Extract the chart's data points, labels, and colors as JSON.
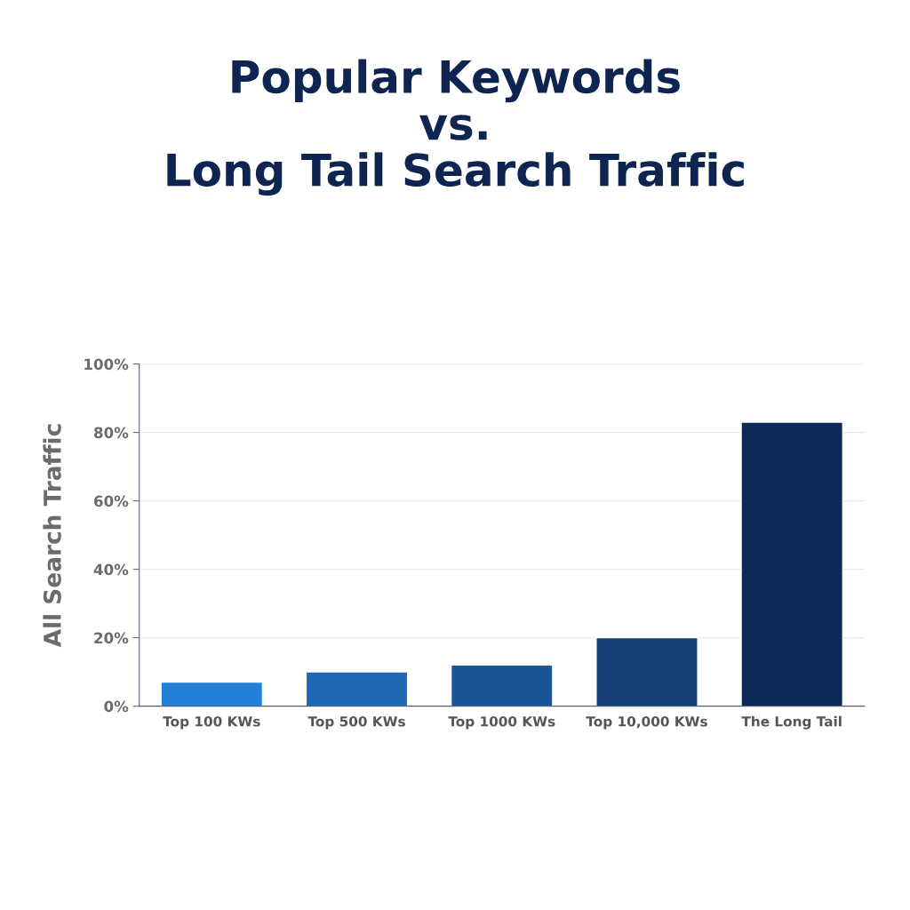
{
  "chart_data": {
    "type": "bar",
    "title": "Popular Keywords\nvs.\nLong Tail Search Traffic",
    "ylabel": "All Search Traffic",
    "categories": [
      "Top 100 KWs",
      "Top 500 KWs",
      "Top 1000 KWs",
      "Top 10,000 KWs",
      "The Long Tail"
    ],
    "values": [
      7,
      10,
      12,
      20,
      83
    ],
    "colors": [
      "#2480d6",
      "#1f68b4",
      "#1a5597",
      "#143f76",
      "#0b2a55"
    ],
    "ylim": [
      0,
      100
    ],
    "yticks": [
      {
        "value": 0,
        "label": "0%"
      },
      {
        "value": 20,
        "label": "20%"
      },
      {
        "value": 40,
        "label": "40%"
      },
      {
        "value": 60,
        "label": "60%"
      },
      {
        "value": 80,
        "label": "80%"
      },
      {
        "value": 100,
        "label": "100%"
      }
    ],
    "grid": "y"
  }
}
